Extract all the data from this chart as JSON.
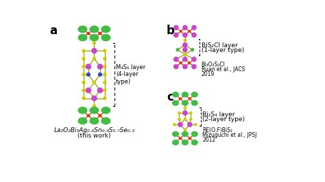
{
  "bg_color": "#ffffff",
  "green": "#44bb44",
  "purple": "#cc44cc",
  "yellow": "#cccc00",
  "red": "#dd3300",
  "blue": "#3344cc",
  "title_a": "a",
  "title_b": "b",
  "title_c": "c",
  "label_a_formula": "La₂O₂Bi₃Ag₀.₆Sn₀.₄S₅.₇Se₀.₃",
  "label_a_sub": "(this work)",
  "label_b1": "BiS₂Cl layer",
  "label_b2": "(1-layer type)",
  "label_b3": "Bi₃O₂S₂Cl",
  "label_b4": "Ruan et al., JACS",
  "label_b5": "2019",
  "label_c1": "Bi₂S₄ layer",
  "label_c2": "(2-layer type)",
  "label_c3": "RE(O,F)BiS₂",
  "label_c4": "Mizuguchi et al., JPSJ",
  "label_c5": "2012",
  "label_m": "M₄S₆ lay…\n(4-layer\ntype)"
}
